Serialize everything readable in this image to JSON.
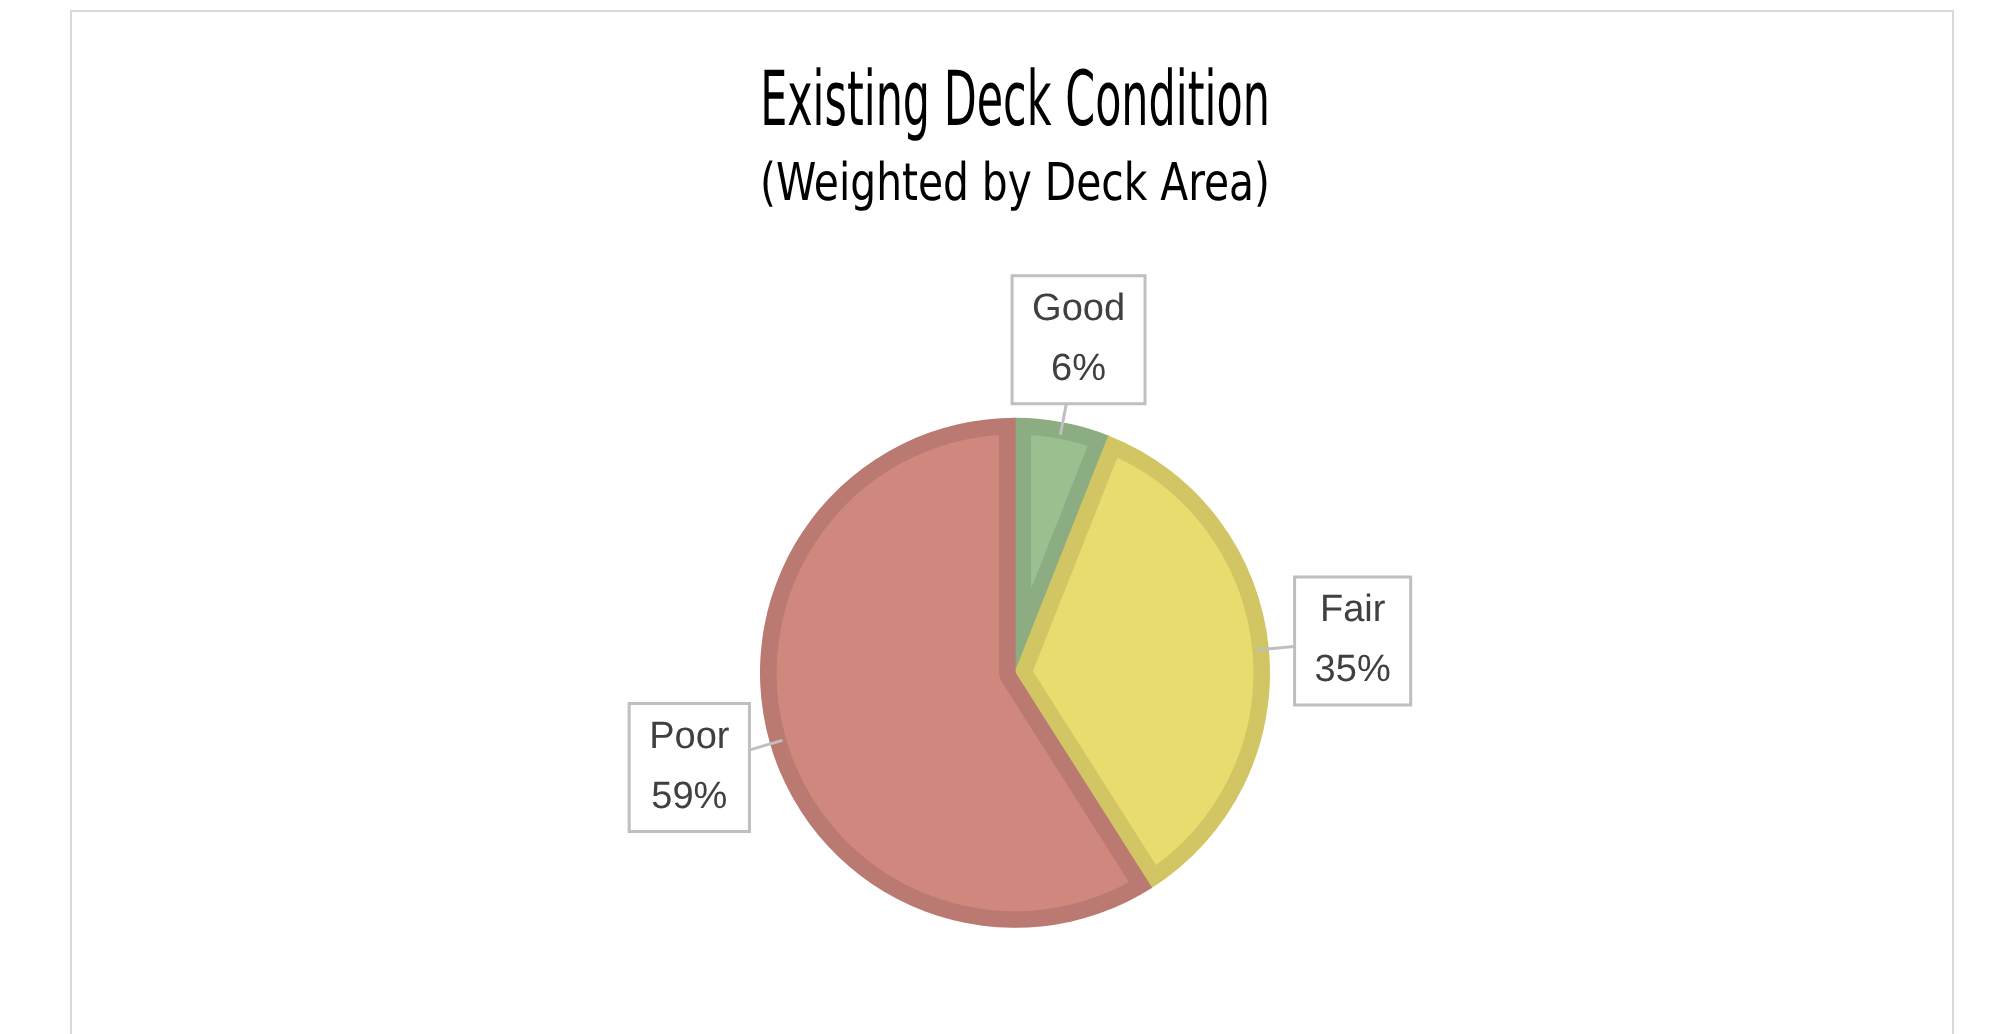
{
  "chart_data": {
    "type": "pie",
    "title": "Existing Deck Condition",
    "subtitle": "(Weighted by Deck Area)",
    "categories": [
      "Good",
      "Fair",
      "Poor"
    ],
    "values": [
      6,
      35,
      59
    ],
    "colors": [
      "#9bbf8f",
      "#e8dc6e",
      "#d0887e"
    ],
    "value_labels": [
      "6%",
      "35%",
      "59%"
    ],
    "legend": false
  }
}
